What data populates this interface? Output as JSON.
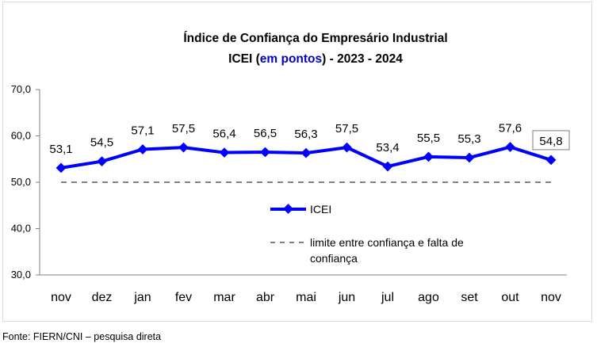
{
  "chart_data": {
    "type": "line",
    "title_line1": "Índice de Confiança do Empresário Industrial",
    "title_line2_prefix": "ICEI (",
    "title_line2_highlight": "em pontos",
    "title_line2_suffix": ") - 2023 - 2024",
    "categories": [
      "nov",
      "dez",
      "jan",
      "fev",
      "mar",
      "abr",
      "mai",
      "jun",
      "jul",
      "ago",
      "set",
      "out",
      "nov"
    ],
    "series": [
      {
        "name": "ICEI",
        "color": "#0000ff",
        "values": [
          53.1,
          54.5,
          57.1,
          57.5,
          56.4,
          56.5,
          56.3,
          57.5,
          53.4,
          55.5,
          55.3,
          57.6,
          54.8
        ],
        "labels": [
          "53,1",
          "54,5",
          "57,1",
          "57,5",
          "56,4",
          "56,5",
          "56,3",
          "57,5",
          "53,4",
          "55,5",
          "55,3",
          "57,6",
          "54,8"
        ]
      }
    ],
    "reference_line": {
      "name_line1": "limite entre confiança e falta de",
      "name_line2": "confiança",
      "value": 50,
      "color": "#808080"
    },
    "ylim": [
      30,
      70
    ],
    "yticks": [
      30,
      40,
      50,
      60,
      70
    ],
    "ytick_labels": [
      "30,0",
      "40,0",
      "50,0",
      "60,0",
      "70,0"
    ],
    "highlight_color": "#0000cc",
    "grid": false,
    "legend_position": "center"
  },
  "source_note": "Fonte: FIERN/CNI – pesquisa direta"
}
